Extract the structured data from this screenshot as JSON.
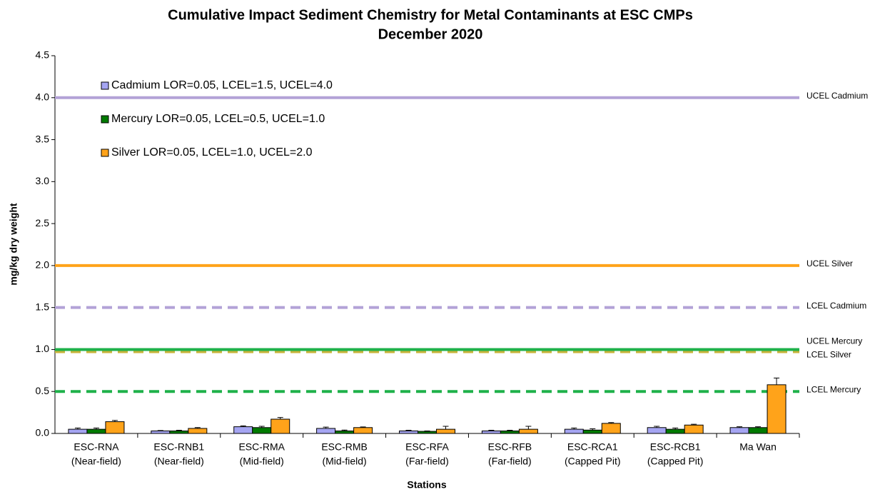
{
  "chart_data": {
    "type": "bar",
    "title": "Cumulative Impact Sediment Chemistry for Metal Contaminants at ESC CMPs",
    "subtitle": "December 2020",
    "y_label": "mg/kg dry weight",
    "x_label": "Stations",
    "categories": [
      [
        "ESC-RNA",
        "(Near-field)"
      ],
      [
        "ESC-RNB1",
        "(Near-field)"
      ],
      [
        "ESC-RMA",
        "(Mid-field)"
      ],
      [
        "ESC-RMB",
        "(Mid-field)"
      ],
      [
        "ESC-RFA",
        "(Far-field)"
      ],
      [
        "ESC-RFB",
        "(Far-field)"
      ],
      [
        "ESC-RCA1",
        "(Capped Pit)"
      ],
      [
        "ESC-RCB1",
        "(Capped Pit)"
      ],
      [
        "Ma Wan"
      ]
    ],
    "series": [
      {
        "name": "Cadmium LOR=0.05, LCEL=1.5, UCEL=4.0",
        "color": "#a5a5f2",
        "values": [
          0.05,
          0.03,
          0.08,
          0.06,
          0.03,
          0.03,
          0.05,
          0.07,
          0.07
        ],
        "errors": [
          0.015,
          0.005,
          0.01,
          0.015,
          0.008,
          0.008,
          0.015,
          0.015,
          0.01
        ]
      },
      {
        "name": "Mercury LOR=0.05, LCEL=0.5, UCEL=1.0",
        "color": "#007a00",
        "values": [
          0.05,
          0.03,
          0.07,
          0.03,
          0.025,
          0.03,
          0.04,
          0.05,
          0.07
        ],
        "errors": [
          0.015,
          0.008,
          0.015,
          0.01,
          0.005,
          0.008,
          0.015,
          0.015,
          0.01
        ]
      },
      {
        "name": "Silver LOR=0.05, LCEL=1.0, UCEL=2.0",
        "color": "#ffa31a",
        "values": [
          0.14,
          0.06,
          0.17,
          0.07,
          0.05,
          0.05,
          0.12,
          0.1,
          0.58
        ],
        "errors": [
          0.015,
          0.01,
          0.02,
          0.008,
          0.035,
          0.035,
          0.01,
          0.01,
          0.08
        ]
      }
    ],
    "reference_lines": [
      {
        "label": "UCEL Cadmium",
        "value": 4.0,
        "color": "#b3a2d7",
        "dashed": false
      },
      {
        "label": "UCEL Silver",
        "value": 2.0,
        "color": "#ffa31a",
        "dashed": false
      },
      {
        "label": "LCEL Cadmium",
        "value": 1.5,
        "color": "#b3a2d7",
        "dashed": true
      },
      {
        "label": "LCEL Silver",
        "value": 1.0,
        "color": "#c8b43c",
        "dashed": true
      },
      {
        "label": "UCEL Mercury",
        "value": 1.0,
        "color": "#1fb14a",
        "dashed": false
      },
      {
        "label": "LCEL Mercury",
        "value": 0.5,
        "color": "#1fb14a",
        "dashed": true
      }
    ],
    "ylim": [
      0,
      4.5
    ],
    "yticks": [
      {
        "value": 0,
        "label": "0.0"
      },
      {
        "value": 0.5,
        "label": "0.5"
      },
      {
        "value": 1,
        "label": "1.0"
      },
      {
        "value": 1.5,
        "label": "1.5"
      },
      {
        "value": 2,
        "label": "2.0"
      },
      {
        "value": 2.5,
        "label": "2.5"
      },
      {
        "value": 3,
        "label": "3.0"
      },
      {
        "value": 3.5,
        "label": "3.5"
      },
      {
        "value": 4,
        "label": "4.0"
      },
      {
        "value": 4.5,
        "label": "4.5"
      }
    ],
    "legend": "upper left"
  }
}
